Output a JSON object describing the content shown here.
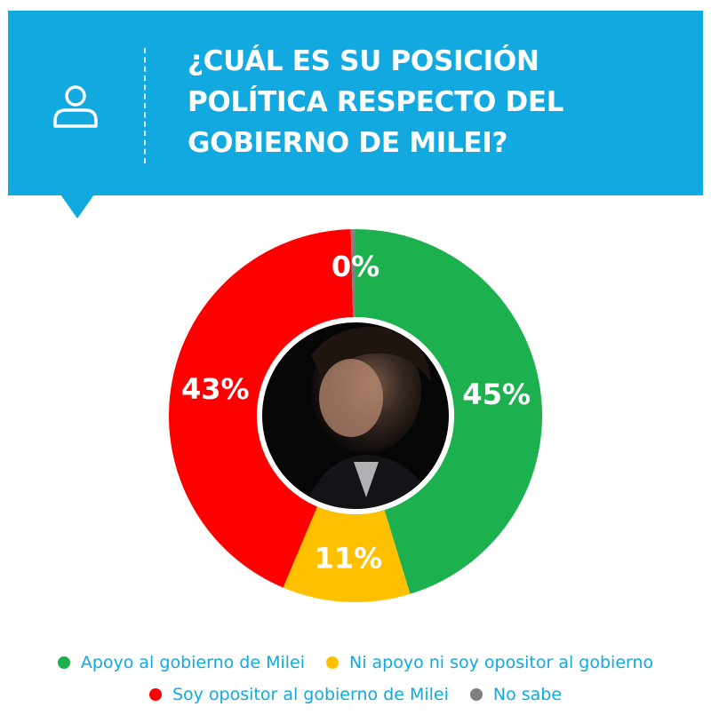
{
  "header": {
    "title": "¿CUÁL ES SU POSICIÓN POLÍTICA RESPECTO DEL GOBIERNO DE MILEI?",
    "icon": "user-icon",
    "background_color": "#12a8e0"
  },
  "chart_data": {
    "type": "pie",
    "variant": "donut",
    "title": "¿CUÁL ES SU POSICIÓN POLÍTICA RESPECTO DEL GOBIERNO DE MILEI?",
    "center_image": "portrait of Javier Milei",
    "legend_position": "bottom",
    "slices": [
      {
        "name": "Apoyo al gobierno de Milei",
        "value": 45,
        "label": "45%",
        "color": "#1db04e"
      },
      {
        "name": "Ni apoyo ni soy opositor al gobierno",
        "value": 11,
        "label": "11%",
        "color": "#ffc000"
      },
      {
        "name": "Soy opositor al gobierno de Milei",
        "value": 43,
        "label": "43%",
        "color": "#ff0000"
      },
      {
        "name": "No sabe",
        "value": 0.4,
        "label": "0%",
        "color": "#808080"
      }
    ]
  }
}
